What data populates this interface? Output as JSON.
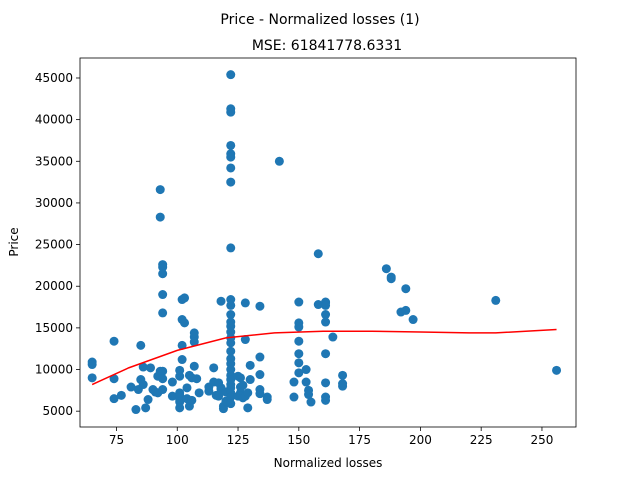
{
  "chart_data": {
    "type": "scatter",
    "suptitle": "Price - Normalized losses (1)",
    "title": "MSE: 61841778.6331",
    "xlabel": "Normalized losses",
    "ylabel": "Price",
    "xlim": [
      60,
      264
    ],
    "ylim": [
      3100,
      47400
    ],
    "xticks": [
      75,
      100,
      125,
      150,
      175,
      200,
      225,
      250
    ],
    "yticks": [
      5000,
      10000,
      15000,
      20000,
      25000,
      30000,
      35000,
      40000,
      45000
    ],
    "grid": false,
    "colors": {
      "points": "#1f77b4",
      "fit_line": "#ff0000"
    },
    "series": [
      {
        "type": "scatter",
        "points": [
          [
            65,
            10900
          ],
          [
            65,
            10600
          ],
          [
            65,
            9000
          ],
          [
            74,
            13400
          ],
          [
            74,
            8900
          ],
          [
            74,
            6500
          ],
          [
            77,
            6900
          ],
          [
            81,
            7900
          ],
          [
            83,
            5200
          ],
          [
            84,
            7600
          ],
          [
            85,
            8800
          ],
          [
            85,
            12900
          ],
          [
            86,
            8200
          ],
          [
            86,
            10300
          ],
          [
            87,
            5400
          ],
          [
            88,
            6400
          ],
          [
            89,
            10200
          ],
          [
            90,
            7600
          ],
          [
            91,
            7300
          ],
          [
            92,
            7200
          ],
          [
            92,
            9200
          ],
          [
            93,
            9800
          ],
          [
            93,
            31600
          ],
          [
            93,
            28300
          ],
          [
            94,
            22600
          ],
          [
            94,
            22300
          ],
          [
            94,
            21500
          ],
          [
            94,
            19000
          ],
          [
            94,
            16800
          ],
          [
            94,
            9800
          ],
          [
            94,
            8900
          ],
          [
            94,
            7600
          ],
          [
            98,
            6800
          ],
          [
            98,
            8500
          ],
          [
            101,
            5400
          ],
          [
            101,
            6100
          ],
          [
            101,
            6400
          ],
          [
            101,
            6900
          ],
          [
            101,
            7200
          ],
          [
            101,
            9200
          ],
          [
            101,
            9900
          ],
          [
            102,
            11200
          ],
          [
            102,
            12900
          ],
          [
            102,
            16000
          ],
          [
            102,
            18400
          ],
          [
            103,
            15600
          ],
          [
            103,
            18600
          ],
          [
            104,
            6500
          ],
          [
            104,
            7800
          ],
          [
            105,
            9300
          ],
          [
            105,
            5600
          ],
          [
            106,
            9000
          ],
          [
            106,
            6300
          ],
          [
            107,
            13900
          ],
          [
            107,
            14400
          ],
          [
            107,
            13300
          ],
          [
            107,
            10400
          ],
          [
            108,
            8900
          ],
          [
            109,
            7200
          ],
          [
            113,
            7400
          ],
          [
            113,
            7900
          ],
          [
            115,
            8500
          ],
          [
            115,
            10200
          ],
          [
            116,
            6900
          ],
          [
            117,
            8400
          ],
          [
            117,
            6800
          ],
          [
            118,
            18200
          ],
          [
            118,
            7800
          ],
          [
            118,
            7600
          ],
          [
            119,
            5600
          ],
          [
            119,
            5300
          ],
          [
            120,
            6200
          ],
          [
            120,
            7300
          ],
          [
            122,
            45400
          ],
          [
            122,
            41300
          ],
          [
            122,
            40900
          ],
          [
            122,
            36900
          ],
          [
            122,
            35900
          ],
          [
            122,
            35500
          ],
          [
            122,
            34200
          ],
          [
            122,
            32500
          ],
          [
            122,
            24600
          ],
          [
            122,
            18400
          ],
          [
            122,
            17700
          ],
          [
            122,
            16600
          ],
          [
            122,
            15700
          ],
          [
            122,
            15200
          ],
          [
            122,
            14500
          ],
          [
            122,
            13800
          ],
          [
            122,
            13200
          ],
          [
            122,
            12200
          ],
          [
            122,
            11300
          ],
          [
            122,
            10700
          ],
          [
            122,
            10000
          ],
          [
            122,
            9300
          ],
          [
            122,
            8800
          ],
          [
            122,
            8200
          ],
          [
            122,
            7800
          ],
          [
            122,
            7200
          ],
          [
            122,
            6700
          ],
          [
            122,
            5900
          ],
          [
            125,
            9200
          ],
          [
            125,
            6800
          ],
          [
            126,
            7200
          ],
          [
            126,
            7900
          ],
          [
            126,
            9000
          ],
          [
            127,
            8100
          ],
          [
            127,
            6600
          ],
          [
            128,
            6800
          ],
          [
            128,
            18000
          ],
          [
            128,
            13600
          ],
          [
            129,
            5400
          ],
          [
            129,
            7200
          ],
          [
            130,
            10500
          ],
          [
            130,
            8800
          ],
          [
            134,
            17600
          ],
          [
            134,
            11500
          ],
          [
            134,
            9400
          ],
          [
            134,
            7600
          ],
          [
            134,
            7100
          ],
          [
            137,
            6700
          ],
          [
            137,
            6400
          ],
          [
            142,
            35000
          ],
          [
            148,
            8500
          ],
          [
            148,
            6700
          ],
          [
            150,
            18100
          ],
          [
            150,
            15600
          ],
          [
            150,
            15100
          ],
          [
            150,
            13400
          ],
          [
            150,
            11900
          ],
          [
            150,
            10800
          ],
          [
            150,
            9600
          ],
          [
            153,
            8500
          ],
          [
            153,
            10000
          ],
          [
            154,
            7500
          ],
          [
            154,
            7000
          ],
          [
            155,
            6100
          ],
          [
            158,
            23900
          ],
          [
            158,
            17800
          ],
          [
            161,
            18100
          ],
          [
            161,
            18000
          ],
          [
            161,
            17700
          ],
          [
            161,
            16600
          ],
          [
            161,
            15700
          ],
          [
            161,
            11900
          ],
          [
            161,
            8400
          ],
          [
            161,
            6700
          ],
          [
            161,
            6300
          ],
          [
            164,
            13900
          ],
          [
            168,
            9300
          ],
          [
            168,
            8300
          ],
          [
            168,
            8000
          ],
          [
            186,
            22100
          ],
          [
            188,
            21100
          ],
          [
            188,
            20900
          ],
          [
            192,
            16900
          ],
          [
            194,
            17100
          ],
          [
            194,
            19700
          ],
          [
            197,
            16000
          ],
          [
            231,
            18300
          ],
          [
            256,
            9900
          ]
        ]
      },
      {
        "type": "line",
        "x": [
          65,
          80,
          100,
          120,
          140,
          160,
          180,
          200,
          220,
          231,
          256
        ],
        "y": [
          8200,
          10200,
          12300,
          13800,
          14400,
          14600,
          14600,
          14500,
          14400,
          14400,
          14800
        ]
      }
    ]
  }
}
